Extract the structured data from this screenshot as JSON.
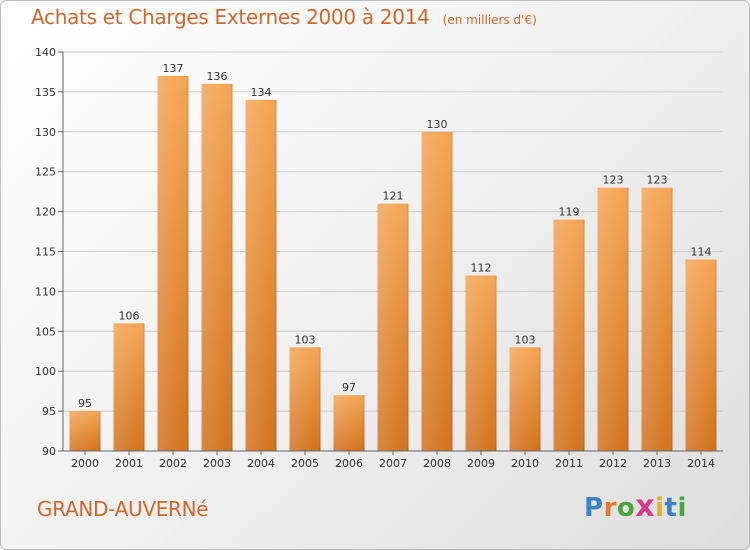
{
  "header": {
    "title": "Achats et Charges Externes 2000 à 2014",
    "subtitle": "(en milliers d'€)"
  },
  "footer": {
    "commune": "GRAND-AUVERNé",
    "logo": {
      "letters": [
        "P",
        "r",
        "o",
        "x",
        "i",
        "t",
        "i"
      ],
      "colors": [
        "#3b83c4",
        "#e8772c",
        "#4aa53a",
        "#d93b8c",
        "#e6b019",
        "#3b83c4",
        "#4aa53a"
      ]
    }
  },
  "colors": {
    "bar_top": "#f5a655",
    "bar_bottom": "#d2731f",
    "title": "#d1662a",
    "grid": "#cccccc"
  },
  "chart_data": {
    "type": "bar",
    "title": "Achats et Charges Externes 2000 à 2014",
    "subtitle": "(en milliers d'€)",
    "categories": [
      "2000",
      "2001",
      "2002",
      "2003",
      "2004",
      "2005",
      "2006",
      "2007",
      "2008",
      "2009",
      "2010",
      "2011",
      "2012",
      "2013",
      "2014"
    ],
    "values": [
      95,
      106,
      137,
      136,
      134,
      103,
      97,
      121,
      130,
      112,
      103,
      119,
      123,
      123,
      114
    ],
    "ylim": [
      90,
      140
    ],
    "yticks": [
      90,
      95,
      100,
      105,
      110,
      115,
      120,
      125,
      130,
      135,
      140
    ],
    "grid": "horizontal",
    "legend": "none"
  }
}
